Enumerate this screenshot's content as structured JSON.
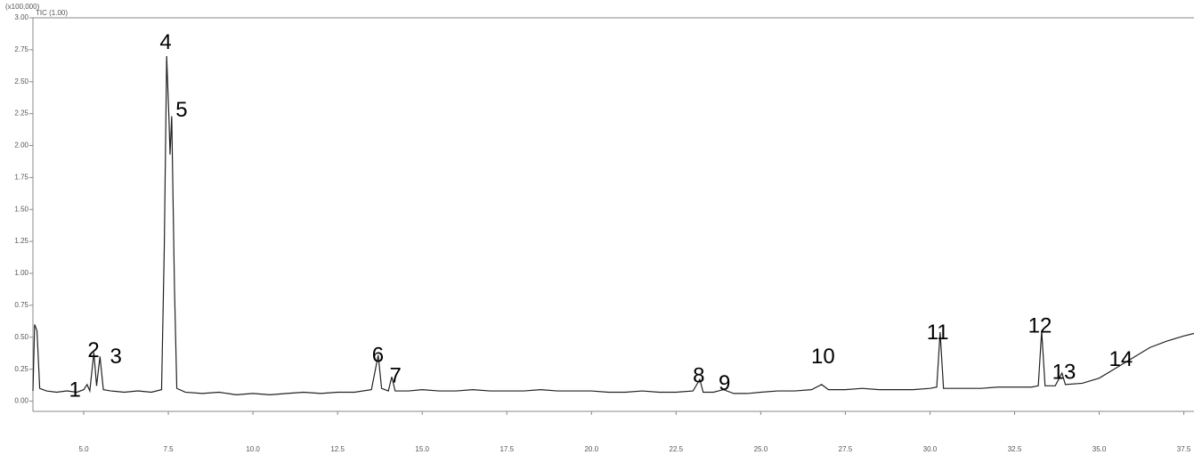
{
  "chart_data": {
    "type": "line",
    "header": "(x100,000)",
    "trace_label": "TIC (1.00)",
    "color": "#222222",
    "xlim": [
      3.5,
      37.8
    ],
    "ylim": [
      -0.08,
      3.0
    ],
    "xticks": [
      {
        "value": 5.0,
        "label": "5.0"
      },
      {
        "value": 7.5,
        "label": "7.5"
      },
      {
        "value": 10.0,
        "label": "10.0"
      },
      {
        "value": 12.5,
        "label": "12.5"
      },
      {
        "value": 15.0,
        "label": "15.0"
      },
      {
        "value": 17.5,
        "label": "17.5"
      },
      {
        "value": 20.0,
        "label": "20.0"
      },
      {
        "value": 22.5,
        "label": "22.5"
      },
      {
        "value": 25.0,
        "label": "25.0"
      },
      {
        "value": 27.5,
        "label": "27.5"
      },
      {
        "value": 30.0,
        "label": "30.0"
      },
      {
        "value": 32.5,
        "label": "32.5"
      },
      {
        "value": 35.0,
        "label": "35.0"
      },
      {
        "value": 37.5,
        "label": "37.5"
      }
    ],
    "yticks": [
      {
        "value": 0,
        "label": "0.00"
      },
      {
        "value": 0.25,
        "label": "0.25"
      },
      {
        "value": 0.5,
        "label": "0.50"
      },
      {
        "value": 0.75,
        "label": "0.75"
      },
      {
        "value": 1.0,
        "label": "1.00"
      },
      {
        "value": 1.25,
        "label": "1.25"
      },
      {
        "value": 1.5,
        "label": "1.50"
      },
      {
        "value": 1.75,
        "label": "1.75"
      },
      {
        "value": 2.0,
        "label": "2.00"
      },
      {
        "value": 2.25,
        "label": "2.25"
      },
      {
        "value": 2.5,
        "label": "2.50"
      },
      {
        "value": 2.75,
        "label": "2.75"
      },
      {
        "value": 3.0,
        "label": "3.00"
      }
    ],
    "x": [
      3.5,
      3.55,
      3.62,
      3.7,
      3.9,
      4.2,
      4.5,
      4.8,
      5.0,
      5.1,
      5.18,
      5.3,
      5.38,
      5.48,
      5.58,
      5.8,
      6.2,
      6.6,
      7.0,
      7.3,
      7.38,
      7.45,
      7.52,
      7.55,
      7.6,
      7.68,
      7.75,
      8.0,
      8.5,
      9.0,
      9.5,
      10.0,
      10.5,
      11.0,
      11.5,
      12.0,
      12.5,
      13.0,
      13.5,
      13.7,
      13.8,
      14.0,
      14.1,
      14.2,
      14.6,
      15.0,
      15.5,
      16.0,
      16.5,
      17.0,
      17.5,
      18.0,
      18.5,
      19.0,
      19.5,
      20.0,
      20.5,
      21.0,
      21.5,
      22.0,
      22.5,
      23.0,
      23.2,
      23.3,
      23.6,
      23.9,
      24.2,
      24.6,
      25.0,
      25.5,
      26.0,
      26.5,
      26.8,
      27.0,
      27.5,
      28.0,
      28.5,
      29.0,
      29.5,
      30.0,
      30.2,
      30.3,
      30.4,
      30.8,
      31.5,
      32.0,
      32.5,
      33.0,
      33.2,
      33.3,
      33.4,
      33.7,
      33.9,
      34.0,
      34.5,
      35.0,
      35.5,
      36.0,
      36.5,
      37.0,
      37.5,
      37.8
    ],
    "values": [
      0.08,
      0.6,
      0.55,
      0.1,
      0.08,
      0.07,
      0.08,
      0.07,
      0.09,
      0.13,
      0.08,
      0.38,
      0.12,
      0.35,
      0.09,
      0.08,
      0.07,
      0.08,
      0.07,
      0.09,
      1.2,
      2.7,
      2.2,
      1.93,
      2.23,
      0.9,
      0.1,
      0.07,
      0.06,
      0.07,
      0.05,
      0.06,
      0.05,
      0.06,
      0.07,
      0.06,
      0.07,
      0.07,
      0.09,
      0.36,
      0.1,
      0.08,
      0.19,
      0.08,
      0.08,
      0.09,
      0.08,
      0.08,
      0.09,
      0.08,
      0.08,
      0.08,
      0.09,
      0.08,
      0.08,
      0.08,
      0.07,
      0.07,
      0.08,
      0.07,
      0.07,
      0.08,
      0.17,
      0.07,
      0.07,
      0.09,
      0.06,
      0.06,
      0.07,
      0.08,
      0.08,
      0.09,
      0.13,
      0.09,
      0.09,
      0.1,
      0.09,
      0.09,
      0.09,
      0.1,
      0.11,
      0.54,
      0.1,
      0.1,
      0.1,
      0.11,
      0.11,
      0.11,
      0.12,
      0.55,
      0.12,
      0.12,
      0.22,
      0.13,
      0.14,
      0.18,
      0.26,
      0.34,
      0.42,
      0.47,
      0.51,
      0.53
    ],
    "annotations": [
      {
        "text": "1",
        "x": 4.74,
        "y": 0.08
      },
      {
        "text": "2",
        "x": 5.29,
        "y": 0.39
      },
      {
        "text": "3",
        "x": 5.95,
        "y": 0.34
      },
      {
        "text": "4",
        "x": 7.42,
        "y": 2.8
      },
      {
        "text": "5",
        "x": 7.89,
        "y": 2.27
      },
      {
        "text": "6",
        "x": 13.69,
        "y": 0.35
      },
      {
        "text": "7",
        "x": 14.21,
        "y": 0.19
      },
      {
        "text": "8",
        "x": 23.17,
        "y": 0.19
      },
      {
        "text": "9",
        "x": 23.93,
        "y": 0.13
      },
      {
        "text": "10",
        "x": 26.84,
        "y": 0.34
      },
      {
        "text": "11",
        "x": 30.23,
        "y": 0.53
      },
      {
        "text": "12",
        "x": 33.25,
        "y": 0.58
      },
      {
        "text": "13",
        "x": 33.96,
        "y": 0.22
      },
      {
        "text": "14",
        "x": 35.64,
        "y": 0.32
      }
    ]
  }
}
